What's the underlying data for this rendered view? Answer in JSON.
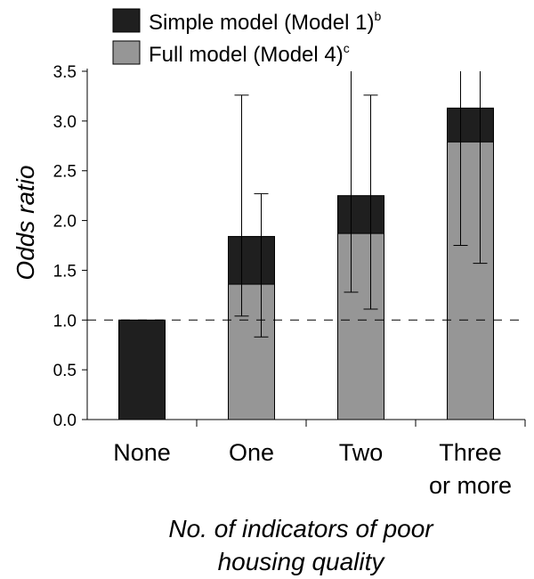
{
  "chart_data": {
    "type": "bar",
    "title": "",
    "ylabel": "Odds ratio",
    "xlabel_lines": [
      "No. of indicators of poor",
      "housing quality"
    ],
    "ylim": [
      0,
      3.5
    ],
    "yticks": [
      0.0,
      0.5,
      1.0,
      1.5,
      2.0,
      2.5,
      3.0,
      3.5
    ],
    "ytick_labels": [
      "0.0",
      "0.5",
      "1.0",
      "1.5",
      "2.0",
      "2.5",
      "3.0",
      "3.5"
    ],
    "reference_line": 1.0,
    "categories": [
      {
        "lines": [
          "None"
        ]
      },
      {
        "lines": [
          "One"
        ]
      },
      {
        "lines": [
          "Two"
        ]
      },
      {
        "lines": [
          "Three",
          "or more"
        ]
      }
    ],
    "legend_position": "top",
    "series": [
      {
        "name": "Simple model (Model 1)",
        "superscript": "b",
        "color": "#1f1f1f",
        "values": [
          1.0,
          1.84,
          2.25,
          3.13
        ],
        "ci_low": [
          null,
          1.04,
          1.28,
          1.75
        ],
        "ci_high": [
          null,
          3.26,
          3.5,
          3.5
        ]
      },
      {
        "name": "Full model (Model 4)",
        "superscript": "c",
        "color": "#969696",
        "values": [
          null,
          1.36,
          1.87,
          2.79
        ],
        "ci_low": [
          null,
          0.83,
          1.11,
          1.57
        ],
        "ci_high": [
          null,
          2.27,
          3.26,
          3.5
        ]
      }
    ]
  }
}
